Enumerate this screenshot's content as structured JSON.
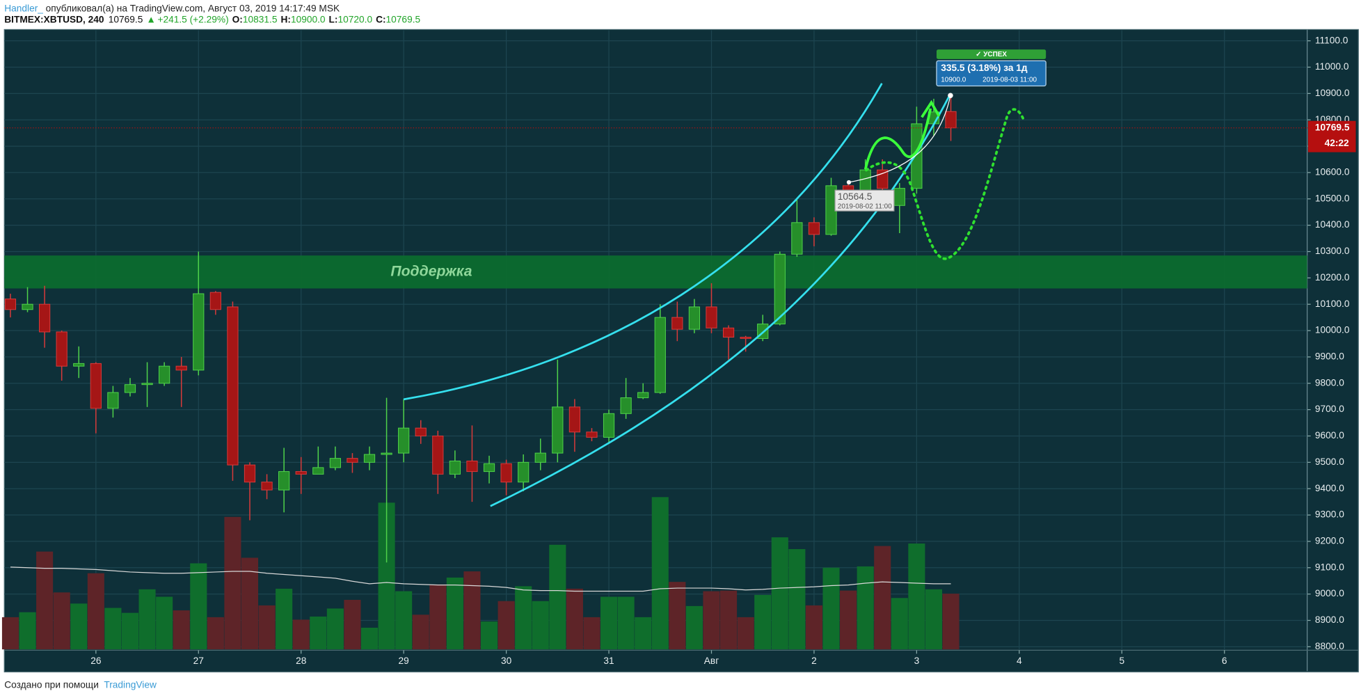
{
  "header": {
    "author": "Handler_",
    "published": "опубликовал(а) на TradingView.com, Август 03, 2019 14:17:49 MSK",
    "symbol": "BITMEX:XBTUSD, 240",
    "last": "10769.5",
    "change": "+241.5 (+2.29%)",
    "o_label": "O:",
    "o": "10831.5",
    "h_label": "H:",
    "h": "10900.0",
    "l_label": "L:",
    "l": "10720.0",
    "c_label": "C:",
    "c": "10769.5"
  },
  "footer": {
    "made_with": "Создано при помощи",
    "brand": "TradingView"
  },
  "chart_data": {
    "type": "candlestick",
    "categories": [
      null,
      null,
      null,
      null,
      null,
      null,
      null,
      null,
      null,
      null,
      null,
      null,
      null,
      null,
      null,
      null,
      null,
      null,
      null,
      null,
      null,
      null,
      null,
      null,
      null,
      null,
      null,
      null,
      null,
      null,
      null,
      null,
      null,
      null,
      null,
      null,
      null,
      null,
      null,
      null,
      null,
      null,
      null,
      null,
      null,
      null,
      null,
      null,
      null,
      null,
      null,
      null,
      null,
      null,
      null,
      null
    ],
    "open": [
      10120,
      10080,
      10100,
      9995,
      9865,
      9875,
      9705,
      9765,
      9795,
      9800,
      9865,
      9850,
      10145,
      10090,
      9490,
      9425,
      9395,
      9465,
      9455,
      9480,
      9515,
      9500,
      9530,
      9535,
      9630,
      9600,
      9455,
      9505,
      9465,
      9495,
      9425,
      9500,
      9535,
      9710,
      9615,
      9595,
      9685,
      9745,
      9765,
      10050,
      10005,
      10090,
      10010,
      9975,
      9970,
      10025,
      10290,
      10410,
      10365,
      10550,
      10525,
      10610,
      10475,
      10540,
      10785,
      10831.5
    ],
    "high": [
      10140,
      10165,
      10170,
      10000,
      9940,
      9880,
      9790,
      9820,
      9880,
      9880,
      9900,
      10300,
      10150,
      10110,
      9500,
      9455,
      9555,
      9520,
      9560,
      9560,
      9535,
      9560,
      9745,
      9740,
      9660,
      9620,
      9545,
      9640,
      9525,
      9510,
      9530,
      9590,
      9890,
      9740,
      9630,
      9700,
      9820,
      9800,
      10100,
      10110,
      10120,
      10180,
      10020,
      9980,
      10060,
      10300,
      10500,
      10430,
      10580,
      10570,
      10650,
      10650,
      10560,
      10850,
      10880,
      10900
    ],
    "low": [
      10050,
      10070,
      9935,
      9810,
      9820,
      9610,
      9670,
      9750,
      9710,
      9790,
      9710,
      9830,
      10060,
      9430,
      9280,
      9360,
      9310,
      9380,
      9460,
      9470,
      9460,
      9470,
      9120,
      9500,
      9570,
      9380,
      9440,
      9350,
      9420,
      9375,
      9390,
      9470,
      9500,
      9540,
      9580,
      9570,
      9665,
      9740,
      9760,
      9960,
      9990,
      9990,
      9890,
      9920,
      9960,
      10020,
      10280,
      10320,
      10360,
      10490,
      10510,
      10480,
      10370,
      10520,
      10740,
      10720
    ],
    "close": [
      10080,
      10100,
      9995,
      9865,
      9875,
      9705,
      9765,
      9795,
      9800,
      9865,
      9850,
      10140,
      10080,
      9490,
      9425,
      9395,
      9465,
      9455,
      9480,
      9515,
      9500,
      9530,
      9535,
      9630,
      9600,
      9455,
      9505,
      9465,
      9495,
      9425,
      9500,
      9535,
      9710,
      9615,
      9595,
      9685,
      9745,
      9765,
      10050,
      10005,
      10090,
      10010,
      9975,
      9970,
      10025,
      10290,
      10410,
      10365,
      10550,
      10525,
      10610,
      10540,
      10540,
      10785,
      10830,
      10769.5
    ],
    "up_color": "#268f2a",
    "down_color": "#a51616",
    "up_wick": "#4fd24a",
    "down_wick": "#d83a3a",
    "volume": {
      "values": [
        5.2,
        6.0,
        15.8,
        9.2,
        7.4,
        12.3,
        6.7,
        5.9,
        9.7,
        8.5,
        6.3,
        13.9,
        5.2,
        21.4,
        14.8,
        7.1,
        9.8,
        4.8,
        5.3,
        6.6,
        8.0,
        3.5,
        23.7,
        9.4,
        5.6,
        10.5,
        11.6,
        12.6,
        4.5,
        7.8,
        10.2,
        7.8,
        16.9,
        9.8,
        5.2,
        8.5,
        8.5,
        5.2,
        24.6,
        10.9,
        7.0,
        9.4,
        9.5,
        5.2,
        8.8,
        18.1,
        16.2,
        7.1,
        13.2,
        9.5,
        13.4,
        16.7,
        8.3,
        17.1,
        9.7,
        9.0
      ],
      "ma": [
        13.3,
        13.2,
        13.1,
        13.1,
        13.0,
        12.9,
        12.7,
        12.5,
        12.4,
        12.3,
        12.3,
        12.4,
        12.5,
        12.6,
        12.6,
        12.3,
        12.1,
        11.9,
        11.7,
        11.5,
        11.0,
        10.6,
        10.8,
        10.6,
        10.5,
        10.4,
        10.4,
        10.3,
        10.2,
        10.0,
        9.6,
        9.5,
        9.5,
        9.4,
        9.4,
        9.4,
        9.4,
        9.4,
        9.8,
        9.9,
        9.9,
        9.9,
        9.8,
        9.6,
        9.7,
        9.9,
        10.0,
        10.1,
        10.3,
        10.4,
        10.7,
        10.9,
        10.8,
        10.7,
        10.6,
        10.6
      ],
      "ylim": [
        0,
        100
      ],
      "up_color": "#0f6e2c",
      "down_color": "#5e2428",
      "ma_color": "#d8d8d8"
    },
    "xlim": [
      -0.355,
      75.84
    ],
    "xticks": [
      {
        "value": 5,
        "label": "26"
      },
      {
        "value": 11,
        "label": "27"
      },
      {
        "value": 17,
        "label": "28"
      },
      {
        "value": 23,
        "label": "29"
      },
      {
        "value": 29,
        "label": "30"
      },
      {
        "value": 35,
        "label": "31"
      },
      {
        "value": 41,
        "label": "Авг"
      },
      {
        "value": 47,
        "label": "2"
      },
      {
        "value": 53,
        "label": "3"
      },
      {
        "value": 59,
        "label": "4"
      },
      {
        "value": 65,
        "label": "5"
      },
      {
        "value": 71,
        "label": "6"
      }
    ],
    "ylim": [
      8790,
      11139.5
    ],
    "yticks": [
      {
        "value": 8800,
        "label": "8800.0"
      },
      {
        "value": 8900,
        "label": "8900.0"
      },
      {
        "value": 9000,
        "label": "9000.0"
      },
      {
        "value": 9100,
        "label": "9100.0"
      },
      {
        "value": 9200,
        "label": "9200.0"
      },
      {
        "value": 9300,
        "label": "9300.0"
      },
      {
        "value": 9400,
        "label": "9400.0"
      },
      {
        "value": 9500,
        "label": "9500.0"
      },
      {
        "value": 9600,
        "label": "9600.0"
      },
      {
        "value": 9700,
        "label": "9700.0"
      },
      {
        "value": 9800,
        "label": "9800.0"
      },
      {
        "value": 9900,
        "label": "9900.0"
      },
      {
        "value": 10000,
        "label": "10000.0"
      },
      {
        "value": 10100,
        "label": "10100.0"
      },
      {
        "value": 10200,
        "label": "10200.0"
      },
      {
        "value": 10300,
        "label": "10300.0"
      },
      {
        "value": 10400,
        "label": "10400.0"
      },
      {
        "value": 10500,
        "label": "10500.0"
      },
      {
        "value": 10600,
        "label": "10600.0"
      },
      {
        "value": 10700,
        "label": "10700.0"
      },
      {
        "value": 10800,
        "label": "10800.0"
      },
      {
        "value": 10900,
        "label": "10900.0"
      },
      {
        "value": 11000,
        "label": "11000.0"
      },
      {
        "value": 11100,
        "label": "11100.0"
      }
    ],
    "grid": true,
    "support": {
      "label": "Поддержка",
      "from": 10160,
      "to": 10285,
      "color": "#0c6b2e"
    },
    "price_tag": {
      "label": "10769.5",
      "countdown": "42:22",
      "color": "#b50f0f"
    },
    "annotations": {
      "success": "✓ УСПЕХ",
      "measure": "335.5 (3.18%) за 1д",
      "measure_price": "10900.0",
      "measure_time": "2019-08-03  11:00",
      "point_price": "10564.5",
      "point_time": "2019-08-02 11:00"
    }
  }
}
